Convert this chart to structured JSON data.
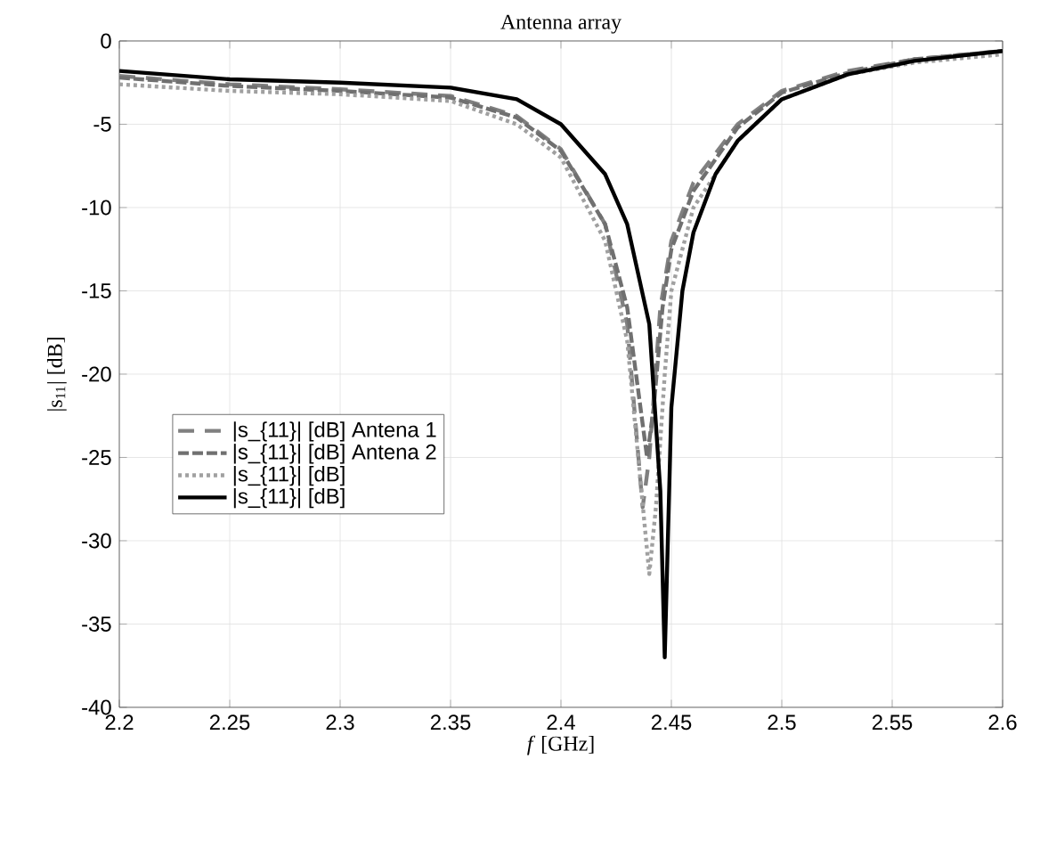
{
  "chart_data": {
    "type": "line",
    "title": "Antenna array",
    "xlabel": "*f* [GHz]",
    "ylabel": "|s$_{11}$| [dB]",
    "xlim": [
      2.2,
      2.6
    ],
    "ylim": [
      -40,
      0
    ],
    "xticks": [
      2.2,
      2.25,
      2.3,
      2.35,
      2.4,
      2.45,
      2.5,
      2.55,
      2.6
    ],
    "yticks": [
      -40,
      -35,
      -30,
      -25,
      -20,
      -15,
      -10,
      -5,
      0
    ],
    "grid": true,
    "legend": "left",
    "series": [
      {
        "name": "|s_{11}| [dB] Antena 1",
        "color": "#808080",
        "line_style": "dashed",
        "x": [
          2.2,
          2.25,
          2.3,
          2.35,
          2.38,
          2.4,
          2.42,
          2.43,
          2.437,
          2.44,
          2.445,
          2.45,
          2.46,
          2.48,
          2.5,
          2.53,
          2.56,
          2.6
        ],
        "values": [
          -2.1,
          -2.6,
          -2.9,
          -3.3,
          -4.5,
          -6.5,
          -11,
          -17,
          -28,
          -25,
          -16,
          -12,
          -8.5,
          -5,
          -3,
          -1.8,
          -1.1,
          -0.6
        ]
      },
      {
        "name": "|s_{11}| [dB] Antena 2",
        "color": "#707070",
        "line_style": "dashdot",
        "x": [
          2.2,
          2.25,
          2.3,
          2.35,
          2.38,
          2.4,
          2.42,
          2.43,
          2.439,
          2.442,
          2.446,
          2.45,
          2.46,
          2.48,
          2.5,
          2.53,
          2.56,
          2.6
        ],
        "values": [
          -2.2,
          -2.7,
          -3,
          -3.4,
          -4.6,
          -6.6,
          -11,
          -16,
          -25,
          -22,
          -16,
          -12.5,
          -9,
          -5.2,
          -3.1,
          -1.9,
          -1.1,
          -0.6
        ]
      },
      {
        "name": "|s_{11}| [dB]",
        "color": "#a0a0a0",
        "line_style": "dotted",
        "x": [
          2.2,
          2.25,
          2.3,
          2.35,
          2.38,
          2.4,
          2.42,
          2.43,
          2.44,
          2.443,
          2.447,
          2.45,
          2.46,
          2.48,
          2.5,
          2.53,
          2.56,
          2.6
        ],
        "values": [
          -2.6,
          -3,
          -3.2,
          -3.6,
          -5,
          -7,
          -12,
          -18,
          -32,
          -28,
          -20,
          -15,
          -10,
          -6,
          -3.5,
          -2,
          -1.3,
          -0.8
        ]
      },
      {
        "name": "|s_{11}| [dB]",
        "color": "#000000",
        "line_style": "solid",
        "x": [
          2.2,
          2.25,
          2.3,
          2.35,
          2.38,
          2.4,
          2.42,
          2.43,
          2.44,
          2.445,
          2.447,
          2.45,
          2.455,
          2.46,
          2.47,
          2.48,
          2.5,
          2.53,
          2.56,
          2.6
        ],
        "values": [
          -1.8,
          -2.3,
          -2.5,
          -2.8,
          -3.5,
          -5,
          -8,
          -11,
          -17,
          -27,
          -37,
          -22,
          -15,
          -11.5,
          -8,
          -6,
          -3.5,
          -2,
          -1.2,
          -0.6
        ]
      }
    ]
  }
}
